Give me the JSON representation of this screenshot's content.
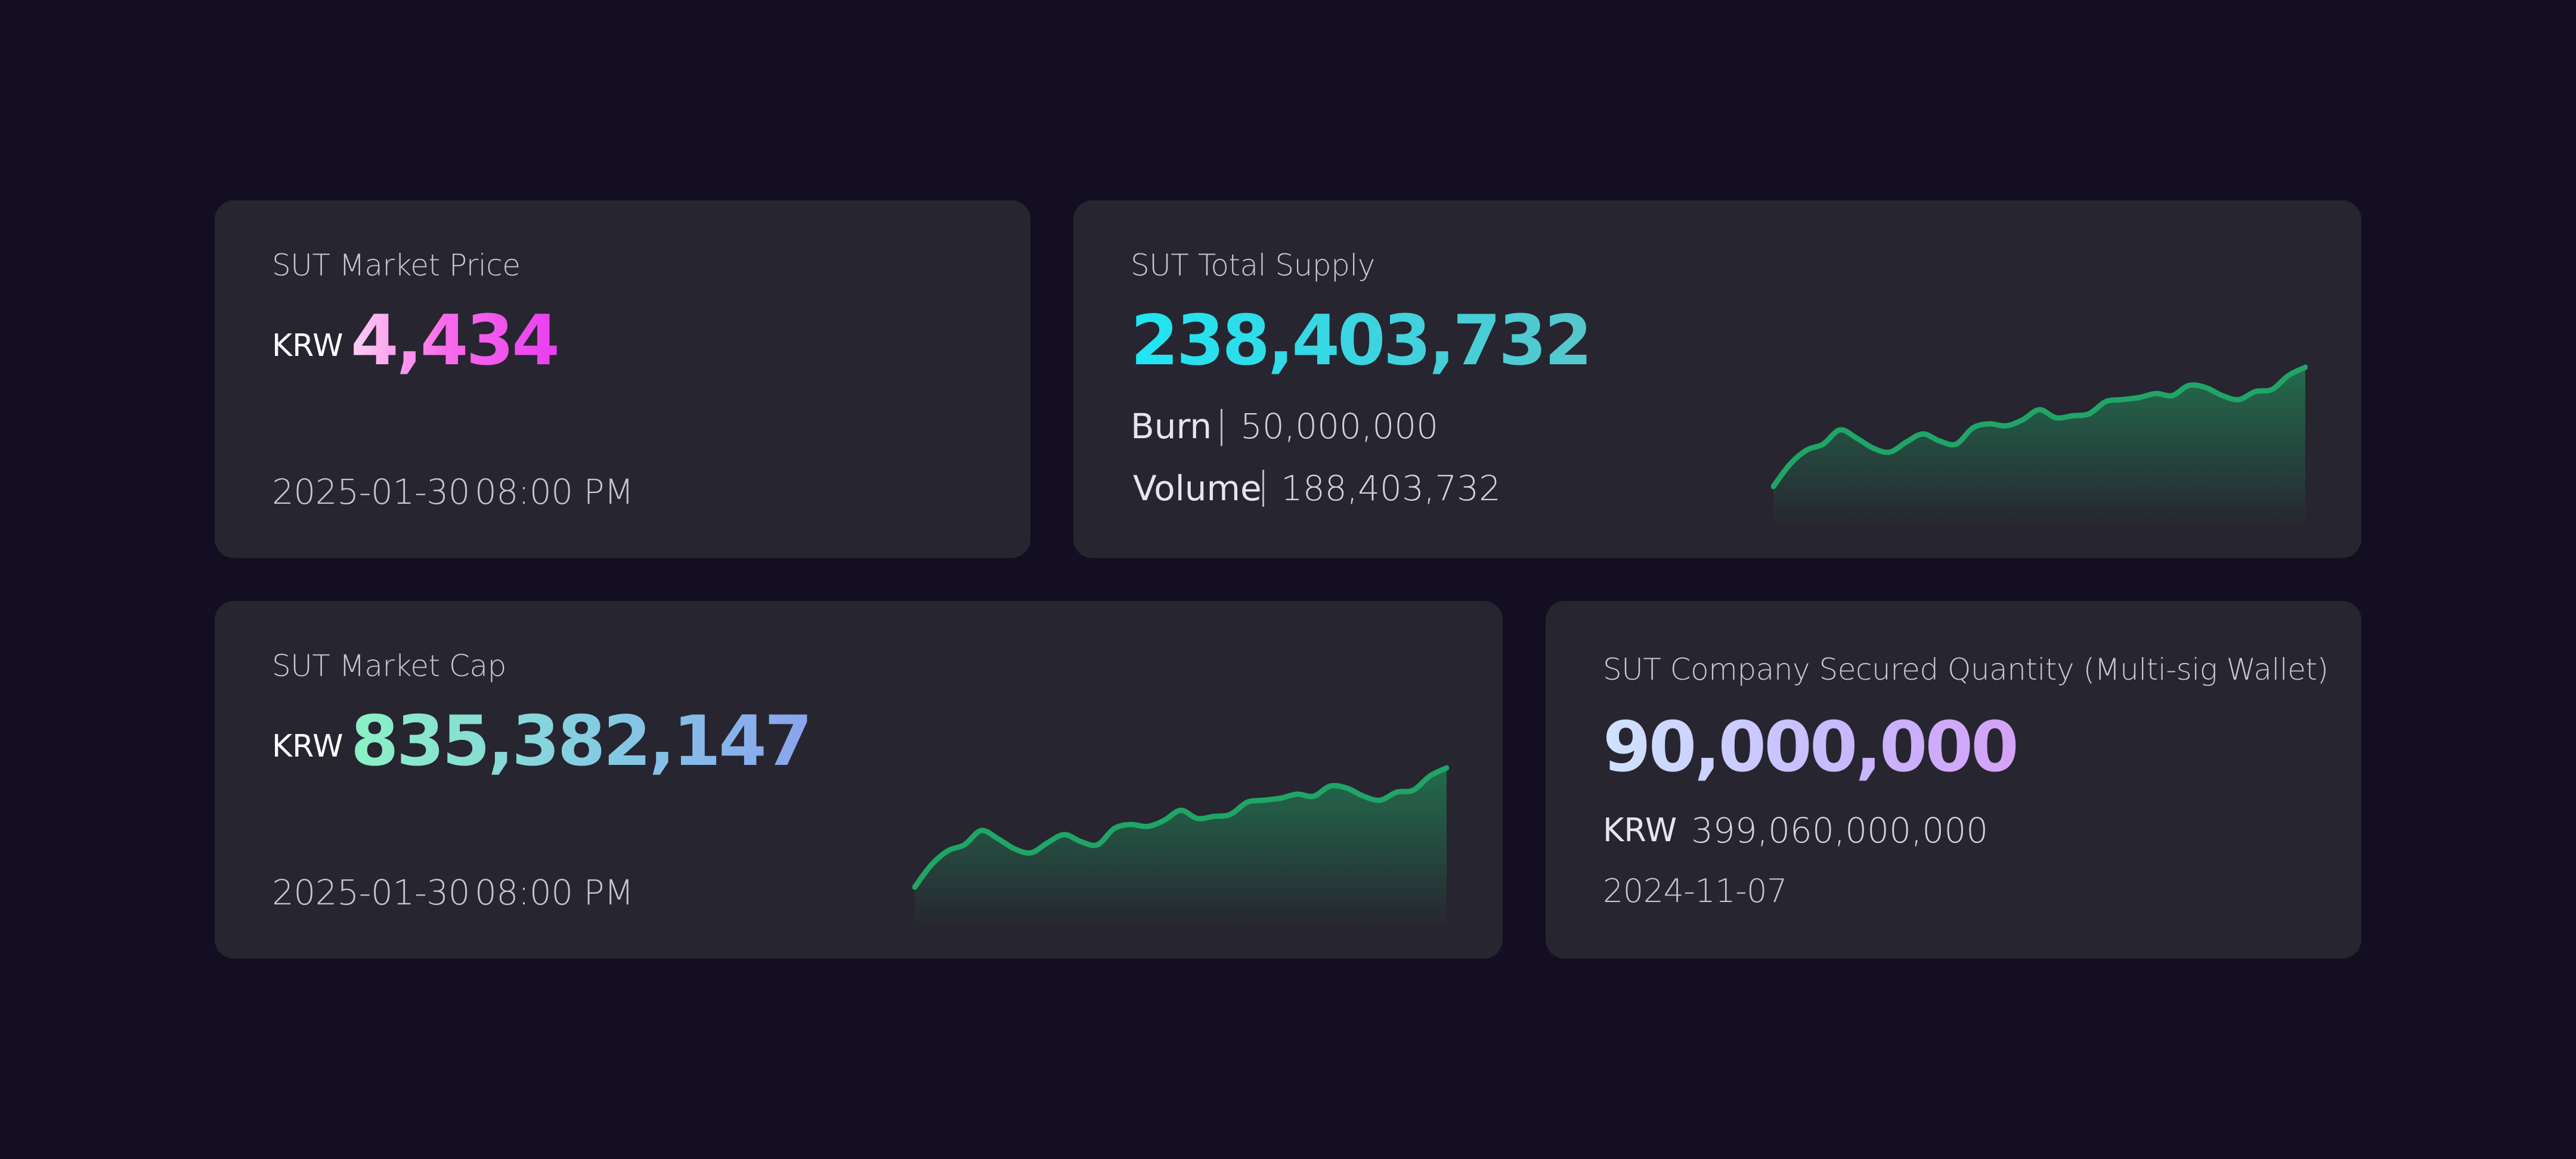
{
  "colors": {
    "background": "#130e21",
    "card": "#27252f",
    "sparkline": "#1fa566"
  },
  "price_card": {
    "title": "SUT Market Price",
    "currency": "KRW",
    "value": "4,434",
    "date": "2025-01-30",
    "time": "08:00 PM"
  },
  "supply_card": {
    "title": "SUT Total Supply",
    "value": "238,403,732",
    "burn_label": "Burn",
    "burn_value": "50,000,000",
    "volume_label": "Volume",
    "volume_value": "188,403,732"
  },
  "mcap_card": {
    "title": "SUT Market Cap",
    "currency": "KRW",
    "value": "835,382,147",
    "date": "2025-01-30",
    "time": "08:00 PM"
  },
  "secured_card": {
    "title": "SUT Company Secured Quantity (Multi-sig Wallet)",
    "value": "90,000,000",
    "currency": "KRW",
    "krw_value": "399,060,000,000",
    "date": "2024-11-07"
  },
  "chart_data": [
    {
      "type": "area",
      "title": "",
      "xlabel": "",
      "ylabel": "",
      "grid": false,
      "values": [
        0.0,
        0.22,
        0.36,
        0.42,
        0.56,
        0.48,
        0.38,
        0.34,
        0.44,
        0.52,
        0.45,
        0.42,
        0.58,
        0.62,
        0.6,
        0.66,
        0.76,
        0.68,
        0.7,
        0.72,
        0.84,
        0.86,
        0.88,
        0.92,
        0.9,
        1.0,
        0.98,
        0.9,
        0.86,
        0.94,
        0.96,
        1.1,
        1.18
      ]
    },
    {
      "type": "area",
      "title": "",
      "xlabel": "",
      "ylabel": "",
      "grid": false,
      "values": [
        0.0,
        0.22,
        0.36,
        0.42,
        0.56,
        0.48,
        0.38,
        0.34,
        0.44,
        0.52,
        0.45,
        0.42,
        0.58,
        0.62,
        0.6,
        0.66,
        0.76,
        0.68,
        0.7,
        0.72,
        0.84,
        0.86,
        0.88,
        0.92,
        0.9,
        1.0,
        0.98,
        0.9,
        0.86,
        0.94,
        0.96,
        1.1,
        1.18
      ]
    }
  ]
}
